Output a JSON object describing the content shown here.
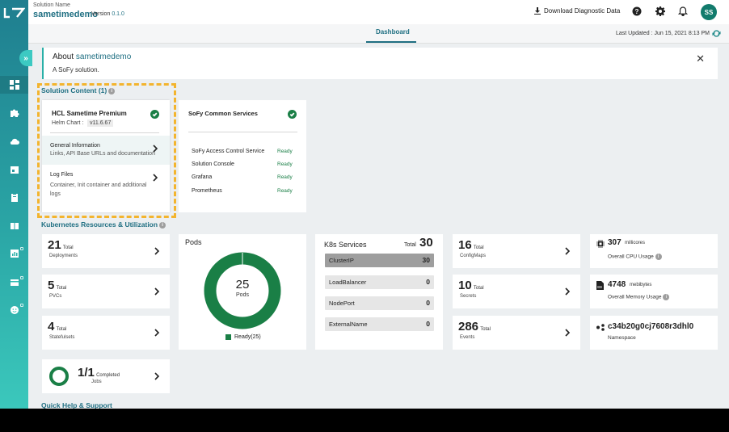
{
  "header": {
    "solution_name_label": "Solution Name",
    "solution_name": "sametimedemo",
    "version_label": "Version",
    "version_value": "0.1.0",
    "download_label": "Download Diagnostic Data",
    "avatar_initials": "SS"
  },
  "tabs": {
    "dashboard": "Dashboard",
    "last_updated": "Last Updated : Jun 15, 2021 8:13 PM"
  },
  "about": {
    "prefix": "About",
    "name": "sametimedemo",
    "description": "A SoFy solution."
  },
  "solution_content": {
    "title": "Solution Content (1)",
    "primary": {
      "name": "HCL Sametime Premium",
      "helm_label": "Helm Chart :",
      "helm_version": "v11.6.67",
      "general_title": "General Information",
      "general_desc": "Links, API Base URLs and documentation",
      "logs_title": "Log Files",
      "logs_desc": "Container, Init container and additional logs"
    },
    "common": {
      "name": "SoFy Common Services",
      "services": [
        {
          "name": "SoFy Access Control Service",
          "status": "Ready"
        },
        {
          "name": "Solution Console",
          "status": "Ready"
        },
        {
          "name": "Grafana",
          "status": "Ready"
        },
        {
          "name": "Prometheus",
          "status": "Ready"
        }
      ]
    }
  },
  "k8s": {
    "title": "Kubernetes Resources & Utilization",
    "deployments": {
      "value": "21",
      "unit": "Total",
      "label": "Deployments"
    },
    "pvcs": {
      "value": "5",
      "unit": "Total",
      "label": "PVCs"
    },
    "statefulsets": {
      "value": "4",
      "unit": "Total",
      "label": "Statefulsets"
    },
    "jobs": {
      "value": "1/1",
      "unit": "Completed",
      "label": "Jobs",
      "completed_fraction": 1.0
    },
    "pods": {
      "title": "Pods",
      "value": "25",
      "label": "Pods",
      "legend": "Ready(25)",
      "ready_fraction": 1.0
    },
    "services": {
      "title": "K8s Services",
      "total_label": "Total",
      "total": "30",
      "rows": [
        {
          "name": "ClusterIP",
          "value": "30"
        },
        {
          "name": "LoadBalancer",
          "value": "0"
        },
        {
          "name": "NodePort",
          "value": "0"
        },
        {
          "name": "ExternalName",
          "value": "0"
        }
      ]
    },
    "configmaps": {
      "value": "16",
      "unit": "Total",
      "label": "ConfigMaps"
    },
    "secrets": {
      "value": "10",
      "unit": "Total",
      "label": "Secrets"
    },
    "events": {
      "value": "286",
      "unit": "Total",
      "label": "Events"
    },
    "cpu": {
      "value": "307",
      "unit": "millicores",
      "label": "Overall CPU Usage"
    },
    "memory": {
      "value": "4748",
      "unit": "mebibytes",
      "label": "Overall Memory Usage"
    },
    "namespace": {
      "value": "c34b20g0cj7608r3dhl0",
      "label": "Namespace"
    }
  },
  "help": {
    "title": "Quick Help & Support"
  },
  "colors": {
    "teal": "#1f6f82",
    "ready_green": "#1a7f46",
    "highlight": "#f3b42e"
  },
  "icons": {
    "sidebar": [
      "dashboard-icon",
      "puzzle-icon",
      "cloud-icon",
      "calendar-icon",
      "clipboard-icon",
      "book-icon",
      "chart-icon",
      "credit-card-icon",
      "emoji-icon"
    ]
  }
}
